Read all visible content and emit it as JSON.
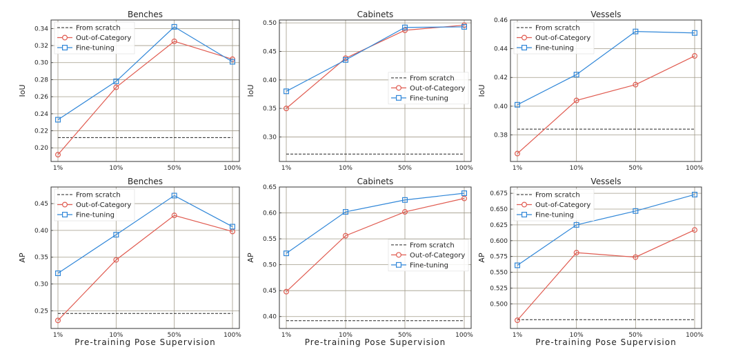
{
  "chart_data": [
    {
      "type": "line",
      "title": "Benches",
      "ylabel": "IoU",
      "xlabel": "",
      "categories": [
        "1%",
        "10%",
        "50%",
        "100%"
      ],
      "ylim": [
        0.184,
        0.35
      ],
      "yticks": [
        "0.20",
        "0.22",
        "0.24",
        "0.26",
        "0.28",
        "0.30",
        "0.32",
        "0.34"
      ],
      "legend": "top-left",
      "series": [
        {
          "name": "From scratch",
          "style": "dashed",
          "color": "#222222",
          "values": [
            0.212,
            0.212,
            0.212,
            0.212
          ]
        },
        {
          "name": "Out-of-Category",
          "style": "circle",
          "color": "#e05a4f",
          "values": [
            0.192,
            0.271,
            0.325,
            0.304
          ]
        },
        {
          "name": "Fine-tuning",
          "style": "square",
          "color": "#2f86d8",
          "values": [
            0.233,
            0.278,
            0.342,
            0.301
          ]
        }
      ]
    },
    {
      "type": "line",
      "title": "Cabinets",
      "ylabel": "IoU",
      "xlabel": "",
      "categories": [
        "1%",
        "10%",
        "50%",
        "100%"
      ],
      "ylim": [
        0.257,
        0.505
      ],
      "yticks": [
        "0.30",
        "0.35",
        "0.40",
        "0.45",
        "0.50"
      ],
      "legend": "center-right",
      "series": [
        {
          "name": "From scratch",
          "style": "dashed",
          "color": "#222222",
          "values": [
            0.27,
            0.27,
            0.27,
            0.27
          ]
        },
        {
          "name": "Out-of-Category",
          "style": "circle",
          "color": "#e05a4f",
          "values": [
            0.35,
            0.438,
            0.487,
            0.496
          ]
        },
        {
          "name": "Fine-tuning",
          "style": "square",
          "color": "#2f86d8",
          "values": [
            0.38,
            0.435,
            0.492,
            0.493
          ]
        }
      ]
    },
    {
      "type": "line",
      "title": "Vessels",
      "ylabel": "IoU",
      "xlabel": "",
      "categories": [
        "1%",
        "10%",
        "50%",
        "100%"
      ],
      "ylim": [
        0.3615,
        0.46
      ],
      "yticks": [
        "0.38",
        "0.40",
        "0.42",
        "0.44",
        "0.46"
      ],
      "legend": "top-left",
      "series": [
        {
          "name": "From scratch",
          "style": "dashed",
          "color": "#222222",
          "values": [
            0.384,
            0.384,
            0.384,
            0.384
          ]
        },
        {
          "name": "Out-of-Category",
          "style": "circle",
          "color": "#e05a4f",
          "values": [
            0.367,
            0.404,
            0.415,
            0.435
          ]
        },
        {
          "name": "Fine-tuning",
          "style": "square",
          "color": "#2f86d8",
          "values": [
            0.401,
            0.422,
            0.452,
            0.451
          ]
        }
      ]
    },
    {
      "type": "line",
      "title": "Benches",
      "ylabel": "AP",
      "xlabel": "Pre-training Pose Supervision",
      "categories": [
        "1%",
        "10%",
        "50%",
        "100%"
      ],
      "ylim": [
        0.217,
        0.481
      ],
      "yticks": [
        "0.25",
        "0.30",
        "0.35",
        "0.40",
        "0.45"
      ],
      "legend": "top-left",
      "series": [
        {
          "name": "From scratch",
          "style": "dashed",
          "color": "#222222",
          "values": [
            0.245,
            0.245,
            0.245,
            0.245
          ]
        },
        {
          "name": "Out-of-Category",
          "style": "circle",
          "color": "#e05a4f",
          "values": [
            0.232,
            0.345,
            0.428,
            0.398
          ]
        },
        {
          "name": "Fine-tuning",
          "style": "square",
          "color": "#2f86d8",
          "values": [
            0.32,
            0.392,
            0.465,
            0.407
          ]
        }
      ]
    },
    {
      "type": "line",
      "title": "Cabinets",
      "ylabel": "AP",
      "xlabel": "Pre-training Pose Supervision",
      "categories": [
        "1%",
        "10%",
        "50%",
        "100%"
      ],
      "ylim": [
        0.377,
        0.65
      ],
      "yticks": [
        "0.40",
        "0.45",
        "0.50",
        "0.55",
        "0.60",
        "0.65"
      ],
      "legend": "center-right",
      "series": [
        {
          "name": "From scratch",
          "style": "dashed",
          "color": "#222222",
          "values": [
            0.392,
            0.392,
            0.392,
            0.392
          ]
        },
        {
          "name": "Out-of-Category",
          "style": "circle",
          "color": "#e05a4f",
          "values": [
            0.448,
            0.556,
            0.602,
            0.628
          ]
        },
        {
          "name": "Fine-tuning",
          "style": "square",
          "color": "#2f86d8",
          "values": [
            0.522,
            0.602,
            0.625,
            0.638
          ]
        }
      ]
    },
    {
      "type": "line",
      "title": "Vessels",
      "ylabel": "AP",
      "xlabel": "Pre-training Pose Supervision",
      "categories": [
        "1%",
        "10%",
        "50%",
        "100%"
      ],
      "ylim": [
        0.461,
        0.685
      ],
      "yticks": [
        "0.500",
        "0.525",
        "0.550",
        "0.575",
        "0.600",
        "0.625",
        "0.650",
        "0.675"
      ],
      "legend": "top-left",
      "series": [
        {
          "name": "From scratch",
          "style": "dashed",
          "color": "#222222",
          "values": [
            0.475,
            0.475,
            0.475,
            0.475
          ]
        },
        {
          "name": "Out-of-Category",
          "style": "circle",
          "color": "#e05a4f",
          "values": [
            0.474,
            0.581,
            0.574,
            0.617
          ]
        },
        {
          "name": "Fine-tuning",
          "style": "square",
          "color": "#2f86d8",
          "values": [
            0.561,
            0.625,
            0.647,
            0.673
          ]
        }
      ]
    }
  ]
}
